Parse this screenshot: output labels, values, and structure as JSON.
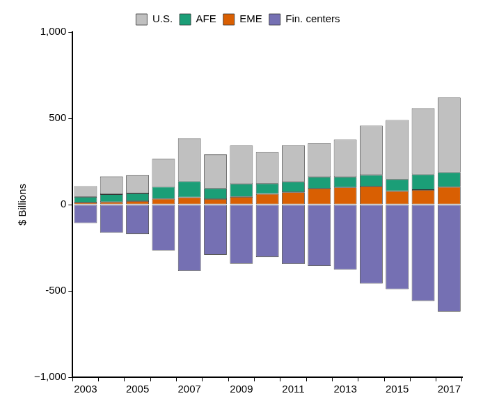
{
  "chart_data": {
    "type": "bar",
    "stacked": true,
    "legend": "top",
    "grid": false,
    "y_label": "$ Billions",
    "categories": [
      "2003",
      null,
      "2005",
      null,
      "2007",
      null,
      "2009",
      null,
      "2011",
      null,
      "2013",
      null,
      "2015",
      null,
      "2017"
    ],
    "ylim": [
      -1000,
      1000
    ],
    "yticks": [
      {
        "value": -1000,
        "label": "−1,000"
      },
      -500,
      0,
      500,
      {
        "value": 1000,
        "label": "1,000"
      }
    ],
    "series": [
      {
        "name": "U.S.",
        "color": "#c0c0c0",
        "values": [
          62,
          103,
          105,
          162,
          248,
          196,
          222,
          181,
          211,
          195,
          217,
          286,
          344,
          383,
          433
        ]
      },
      {
        "name": "AFE",
        "color": "#1b9e77",
        "values": [
          33,
          45,
          45,
          70,
          93,
          62,
          75,
          60,
          60,
          67,
          60,
          67,
          68,
          90,
          85
        ]
      },
      {
        "name": "EME",
        "color": "#d95f02",
        "values": [
          12,
          15,
          20,
          33,
          42,
          32,
          45,
          62,
          72,
          93,
          100,
          105,
          78,
          85,
          102
        ]
      },
      {
        "name": "Fin. centers",
        "color": "#7570b3",
        "values": [
          -107,
          -163,
          -170,
          -265,
          -383,
          -290,
          -342,
          -303,
          -343,
          -355,
          -377,
          -458,
          -490,
          -558,
          -620
        ]
      }
    ]
  }
}
